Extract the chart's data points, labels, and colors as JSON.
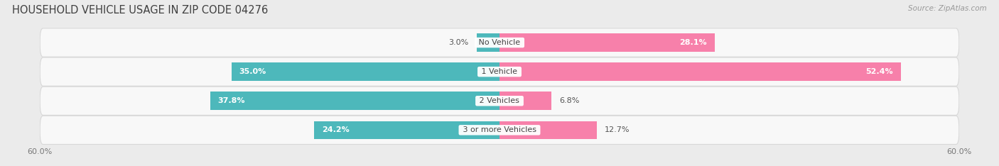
{
  "title": "HOUSEHOLD VEHICLE USAGE IN ZIP CODE 04276",
  "source": "Source: ZipAtlas.com",
  "categories": [
    "No Vehicle",
    "1 Vehicle",
    "2 Vehicles",
    "3 or more Vehicles"
  ],
  "owner_values": [
    3.0,
    35.0,
    37.8,
    24.2
  ],
  "renter_values": [
    28.1,
    52.4,
    6.8,
    12.7
  ],
  "owner_color": "#4db8bb",
  "renter_color": "#f780aa",
  "xlim": 60.0,
  "bg_color": "#ebebeb",
  "row_bg_color": "#f5f5f5",
  "title_fontsize": 10.5,
  "source_fontsize": 7.5,
  "label_fontsize": 8,
  "category_fontsize": 8,
  "axis_label_fontsize": 8,
  "bar_height": 0.62,
  "fig_width": 14.06,
  "fig_height": 2.34
}
